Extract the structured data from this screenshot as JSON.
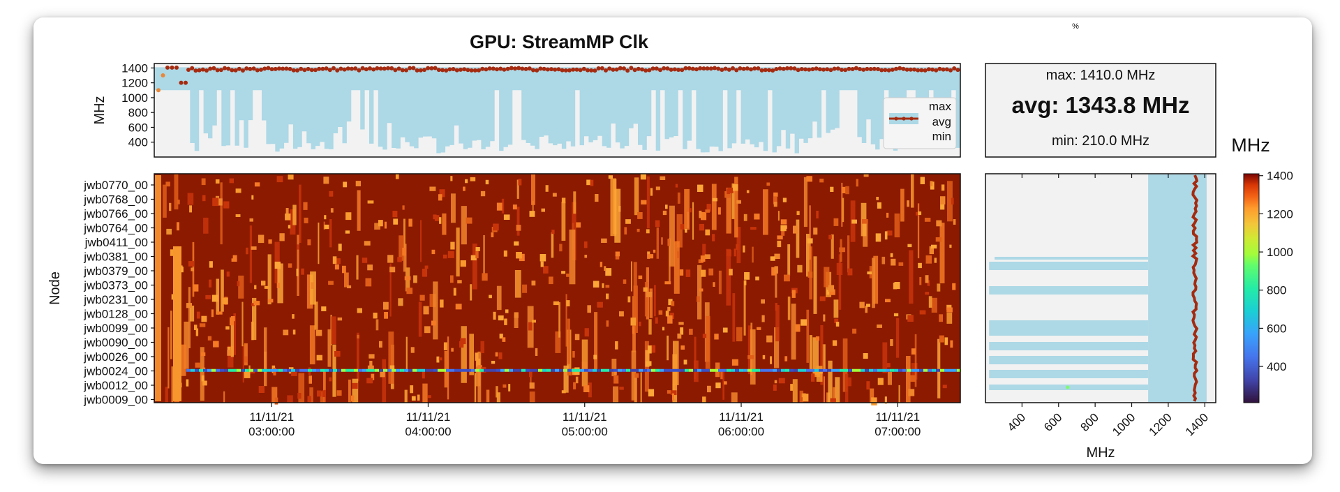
{
  "chart_data": [
    {
      "type": "area",
      "ylabel": "MHz",
      "yticks": [
        400,
        600,
        800,
        1000,
        1200,
        1400
      ],
      "ylim": [
        200,
        1460
      ],
      "xlim_hours": [
        2.25,
        7.4
      ],
      "legend": {
        "entries": [
          "max",
          "avg",
          "min"
        ],
        "placement": "bottom-right"
      },
      "series": [
        {
          "name": "max",
          "approx_value": 1410
        },
        {
          "name": "avg",
          "approx_value": 1380
        },
        {
          "name": "min",
          "approx_range": [
            250,
            1100
          ]
        }
      ]
    },
    {
      "type": "heatmap",
      "title": "GPU: StreamMP Clk",
      "ylabel": "Node",
      "nodes": [
        "jwb0770_00",
        "jwb0768_00",
        "jwb0766_00",
        "jwb0764_00",
        "jwb0411_00",
        "jwb0381_00",
        "jwb0379_00",
        "jwb0373_00",
        "jwb0231_00",
        "jwb0128_00",
        "jwb0099_00",
        "jwb0090_00",
        "jwb0026_00",
        "jwb0024_00",
        "jwb0012_00",
        "jwb0009_00"
      ],
      "xticks": [
        {
          "date": "11/11/21",
          "time": "03:00:00"
        },
        {
          "date": "11/11/21",
          "time": "04:00:00"
        },
        {
          "date": "11/11/21",
          "time": "05:00:00"
        },
        {
          "date": "11/11/21",
          "time": "06:00:00"
        },
        {
          "date": "11/11/21",
          "time": "07:00:00"
        }
      ],
      "value_range": [
        210,
        1410
      ],
      "low_row": "jwb0024_00"
    },
    {
      "type": "bar",
      "orientation": "horizontal",
      "xlabel": "MHz",
      "xticks": [
        400,
        600,
        800,
        1000,
        1200,
        1400
      ],
      "xlim": [
        200,
        1460
      ]
    }
  ],
  "stats": {
    "max_label": "max: 1410.0 MHz",
    "avg_label": "avg: 1343.8 MHz",
    "min_label": "min: 210.0 MHz",
    "corner_mark": "%"
  },
  "colorbar": {
    "label": "MHz",
    "ticks": [
      400,
      600,
      800,
      1000,
      1200,
      1400
    ],
    "range": [
      210,
      1410
    ]
  },
  "colors": {
    "min_band": "#add8e6",
    "avg_line": "#a52a0f",
    "plot_bg": "#f2f2f2"
  }
}
